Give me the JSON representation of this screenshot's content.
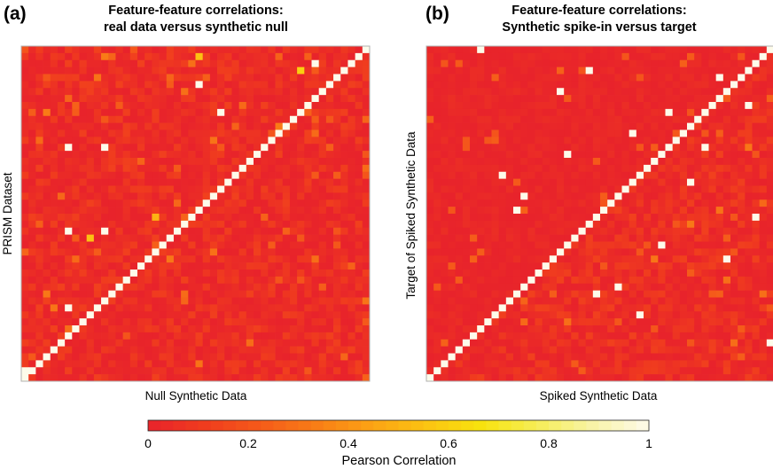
{
  "colors": {
    "colormap": [
      "#e8232b",
      "#f03c1e",
      "#f55a1a",
      "#f97d16",
      "#fca214",
      "#fcc412",
      "#f8e30e",
      "#f6ee58",
      "#f9f3a8",
      "#fdfbea"
    ],
    "panel_border": "#b0b0b0"
  },
  "panels": [
    {
      "letter": "(a)",
      "title_line1": "Feature-feature correlations:",
      "title_line2": "real data versus synthetic null",
      "xlabel": "Null Synthetic Data",
      "ylabel": "PRISM Dataset"
    },
    {
      "letter": "(b)",
      "title_line1": "Feature-feature correlations:",
      "title_line2": "Synthetic spike-in versus target",
      "xlabel": "Spiked Synthetic Data",
      "ylabel": "Target of Spiked Synthetic Data"
    }
  ],
  "colorbar": {
    "label": "Pearson Correlation",
    "ticks": [
      "0",
      "0.2",
      "0.4",
      "0.6",
      "0.8",
      "1"
    ]
  },
  "chart_data": [
    {
      "type": "heatmap",
      "title": "Feature-feature correlations: real data versus synthetic null",
      "xlabel": "Null Synthetic Data",
      "ylabel": "PRISM Dataset",
      "n": 48,
      "value_range": [
        0,
        1
      ],
      "diagonal_value": 1,
      "upper_triangle_mean": 0.08,
      "lower_triangle_mean": 0.08,
      "high_cells": [
        {
          "row": 5,
          "col": 24,
          "value": 1
        },
        {
          "row": 2,
          "col": 40,
          "value": 1
        },
        {
          "row": 9,
          "col": 27,
          "value": 1
        },
        {
          "row": 14,
          "col": 6,
          "value": 1
        },
        {
          "row": 14,
          "col": 11,
          "value": 1
        },
        {
          "row": 26,
          "col": 6,
          "value": 1
        },
        {
          "row": 26,
          "col": 11,
          "value": 1
        },
        {
          "row": 37,
          "col": 6,
          "value": 1
        },
        {
          "row": 46,
          "col": 0,
          "value": 1
        },
        {
          "row": 1,
          "col": 24,
          "value": 0.55
        },
        {
          "row": 3,
          "col": 38,
          "value": 0.6
        },
        {
          "row": 27,
          "col": 9,
          "value": 0.55
        },
        {
          "row": 24,
          "col": 18,
          "value": 0.5
        }
      ]
    },
    {
      "type": "heatmap",
      "title": "Feature-feature correlations: Synthetic spike-in versus target",
      "xlabel": "Spiked Synthetic Data",
      "ylabel": "Target of Spiked Synthetic Data",
      "n": 48,
      "value_range": [
        0,
        1
      ],
      "diagonal_value": 1,
      "upper_triangle_mean": 0.03,
      "lower_triangle_mean": 0.08,
      "high_cells": [
        {
          "row": 0,
          "col": 7,
          "value": 1
        },
        {
          "row": 3,
          "col": 22,
          "value": 1
        },
        {
          "row": 4,
          "col": 40,
          "value": 1
        },
        {
          "row": 6,
          "col": 18,
          "value": 1
        },
        {
          "row": 8,
          "col": 44,
          "value": 1
        },
        {
          "row": 9,
          "col": 33,
          "value": 1
        },
        {
          "row": 12,
          "col": 28,
          "value": 1
        },
        {
          "row": 14,
          "col": 38,
          "value": 1
        },
        {
          "row": 15,
          "col": 19,
          "value": 1
        },
        {
          "row": 18,
          "col": 10,
          "value": 1
        },
        {
          "row": 19,
          "col": 36,
          "value": 1
        },
        {
          "row": 21,
          "col": 13,
          "value": 1
        },
        {
          "row": 23,
          "col": 12,
          "value": 1
        },
        {
          "row": 24,
          "col": 45,
          "value": 1
        },
        {
          "row": 28,
          "col": 32,
          "value": 1
        },
        {
          "row": 30,
          "col": 41,
          "value": 1
        },
        {
          "row": 34,
          "col": 26,
          "value": 1
        },
        {
          "row": 35,
          "col": 23,
          "value": 1
        },
        {
          "row": 38,
          "col": 29,
          "value": 1
        },
        {
          "row": 42,
          "col": 47,
          "value": 1
        },
        {
          "row": 23,
          "col": 24,
          "value": 0.5
        }
      ]
    }
  ]
}
